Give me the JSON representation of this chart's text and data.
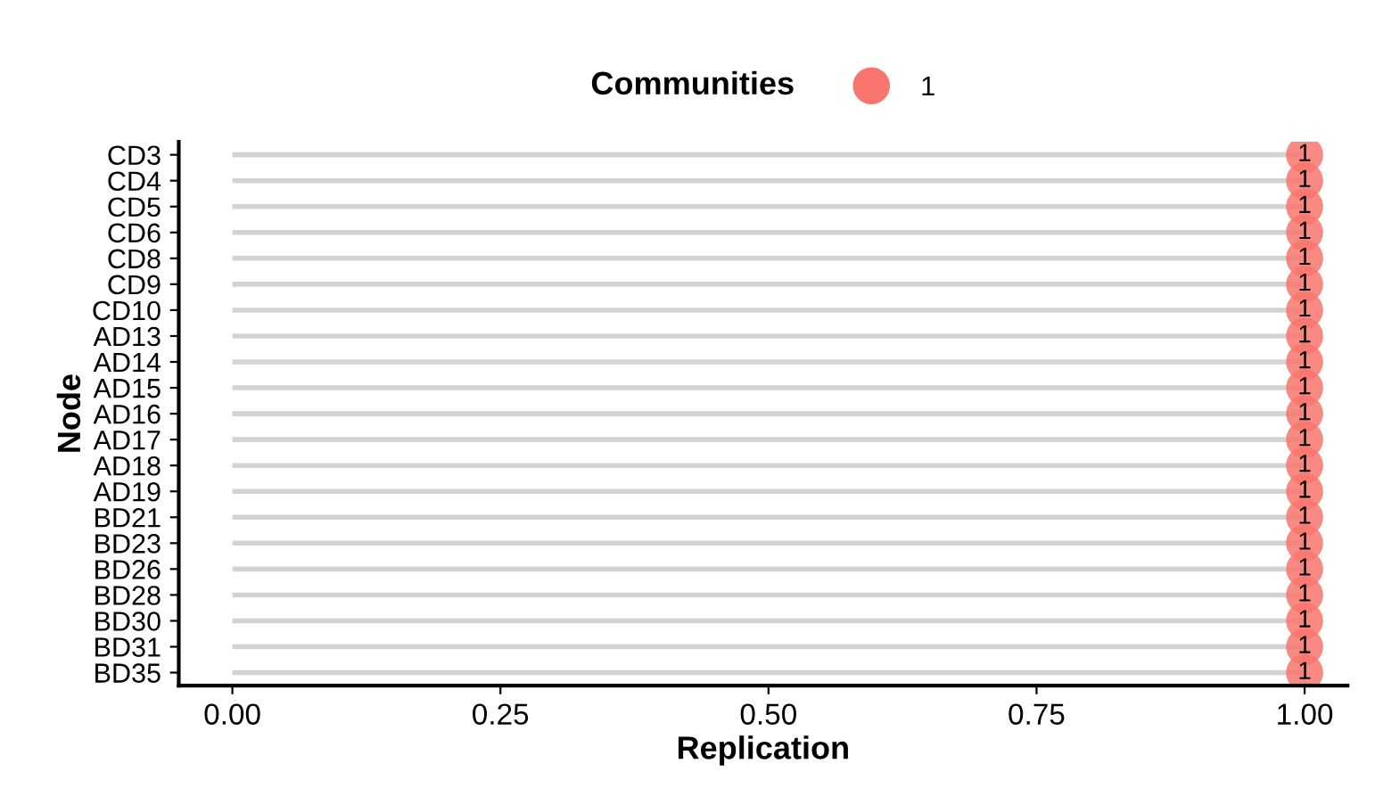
{
  "chart_data": {
    "type": "lollipop",
    "orientation": "horizontal",
    "xlabel": "Replication",
    "ylabel": "Node",
    "legend_title": "Communities",
    "legend": "top",
    "categories": [
      "CD3",
      "CD4",
      "CD5",
      "CD6",
      "CD8",
      "CD9",
      "CD10",
      "AD13",
      "AD14",
      "AD15",
      "AD16",
      "AD17",
      "AD18",
      "AD19",
      "BD21",
      "BD23",
      "BD26",
      "BD28",
      "BD30",
      "BD31",
      "BD35"
    ],
    "series": [
      {
        "name": "1",
        "color": "#f8766d",
        "values": [
          1,
          1,
          1,
          1,
          1,
          1,
          1,
          1,
          1,
          1,
          1,
          1,
          1,
          1,
          1,
          1,
          1,
          1,
          1,
          1,
          1
        ]
      }
    ],
    "xlim": [
      -0.05,
      1.04
    ],
    "xticks": [
      {
        "value": 0,
        "label": "0.00"
      },
      {
        "value": 0.25,
        "label": "0.25"
      },
      {
        "value": 0.5,
        "label": "0.50"
      },
      {
        "value": 0.75,
        "label": "0.75"
      },
      {
        "value": 1,
        "label": "1.00"
      }
    ],
    "data_labels": true,
    "grid": false,
    "marker": "circle"
  }
}
